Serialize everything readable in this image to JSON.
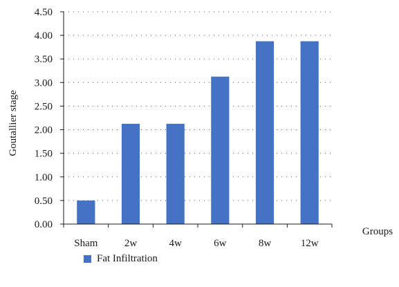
{
  "chart_data": {
    "type": "bar",
    "categories": [
      "Sham",
      "2w",
      "4w",
      "6w",
      "8w",
      "12w"
    ],
    "series": [
      {
        "name": "Fat Infiltration",
        "values": [
          0.5,
          2.125,
          2.125,
          3.125,
          3.875,
          3.875
        ],
        "color": "#4472c4"
      }
    ],
    "xlabel": "Groups",
    "ylabel": "Goutallier stage",
    "ylim": [
      0,
      4.5
    ],
    "yticks": [
      "0.00",
      "0.50",
      "1.00",
      "1.50",
      "2.00",
      "2.50",
      "3.00",
      "3.50",
      "4.00",
      "4.50"
    ],
    "grid": "dotted horizontal",
    "legend_position": "bottom-left"
  }
}
